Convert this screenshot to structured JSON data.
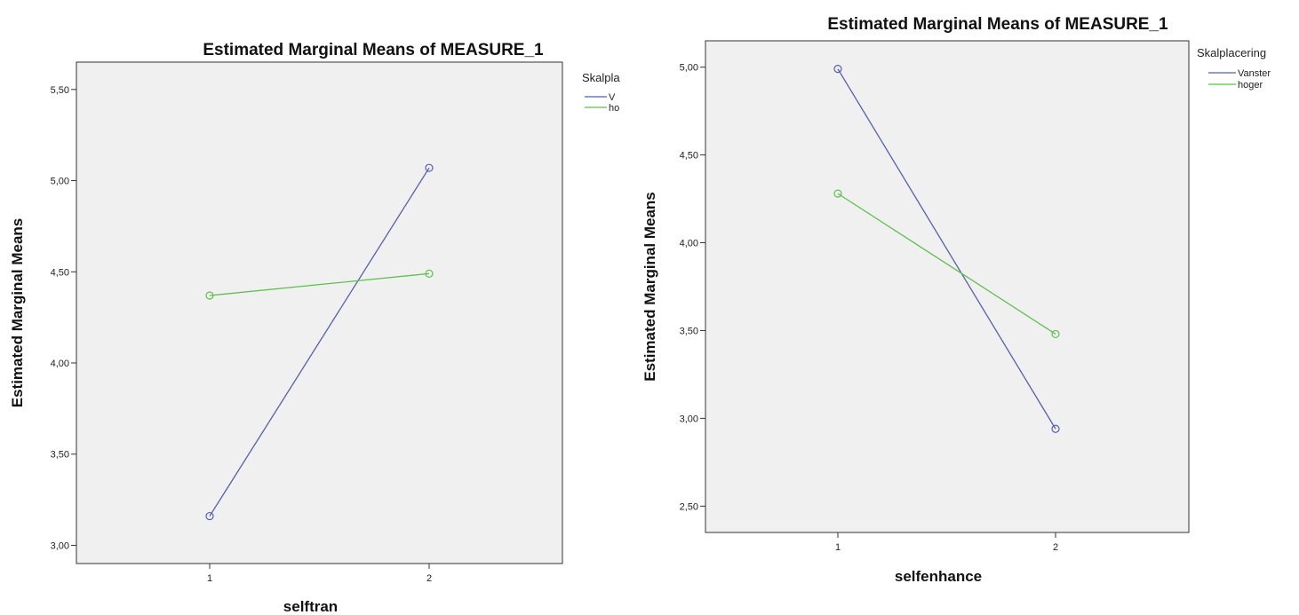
{
  "chart_data": [
    {
      "type": "line",
      "title": "Estimated Marginal Means of MEASURE_1",
      "xlabel": "selftran",
      "ylabel": "Estimated Marginal Means",
      "categories": [
        "1",
        "2"
      ],
      "ylim": [
        2.9,
        5.65
      ],
      "yticks": [
        "3,00",
        "3,50",
        "4,00",
        "4,50",
        "5,00",
        "5,50"
      ],
      "ytick_values": [
        3.0,
        3.5,
        4.0,
        4.5,
        5.0,
        5.5
      ],
      "legend_title": "Skalpla",
      "series": [
        {
          "name": "V",
          "values": [
            3.16,
            5.07
          ],
          "color": "#5460b0"
        },
        {
          "name": "ho",
          "values": [
            4.37,
            4.49
          ],
          "color": "#5cc24c"
        }
      ],
      "grid": false,
      "legend_position": "right"
    },
    {
      "type": "line",
      "title": "Estimated Marginal Means of MEASURE_1",
      "xlabel": "selfenhance",
      "ylabel": "Estimated Marginal Means",
      "categories": [
        "1",
        "2"
      ],
      "ylim": [
        2.35,
        5.15
      ],
      "yticks": [
        "2,50",
        "3,00",
        "3,50",
        "4,00",
        "4,50",
        "5,00"
      ],
      "ytick_values": [
        2.5,
        3.0,
        3.5,
        4.0,
        4.5,
        5.0
      ],
      "legend_title": "Skalplacering",
      "series": [
        {
          "name": "Vanster",
          "values": [
            4.99,
            2.94
          ],
          "color": "#5460b0"
        },
        {
          "name": "hoger",
          "values": [
            4.28,
            3.48
          ],
          "color": "#5cc24c"
        }
      ],
      "grid": false,
      "legend_position": "right"
    }
  ]
}
